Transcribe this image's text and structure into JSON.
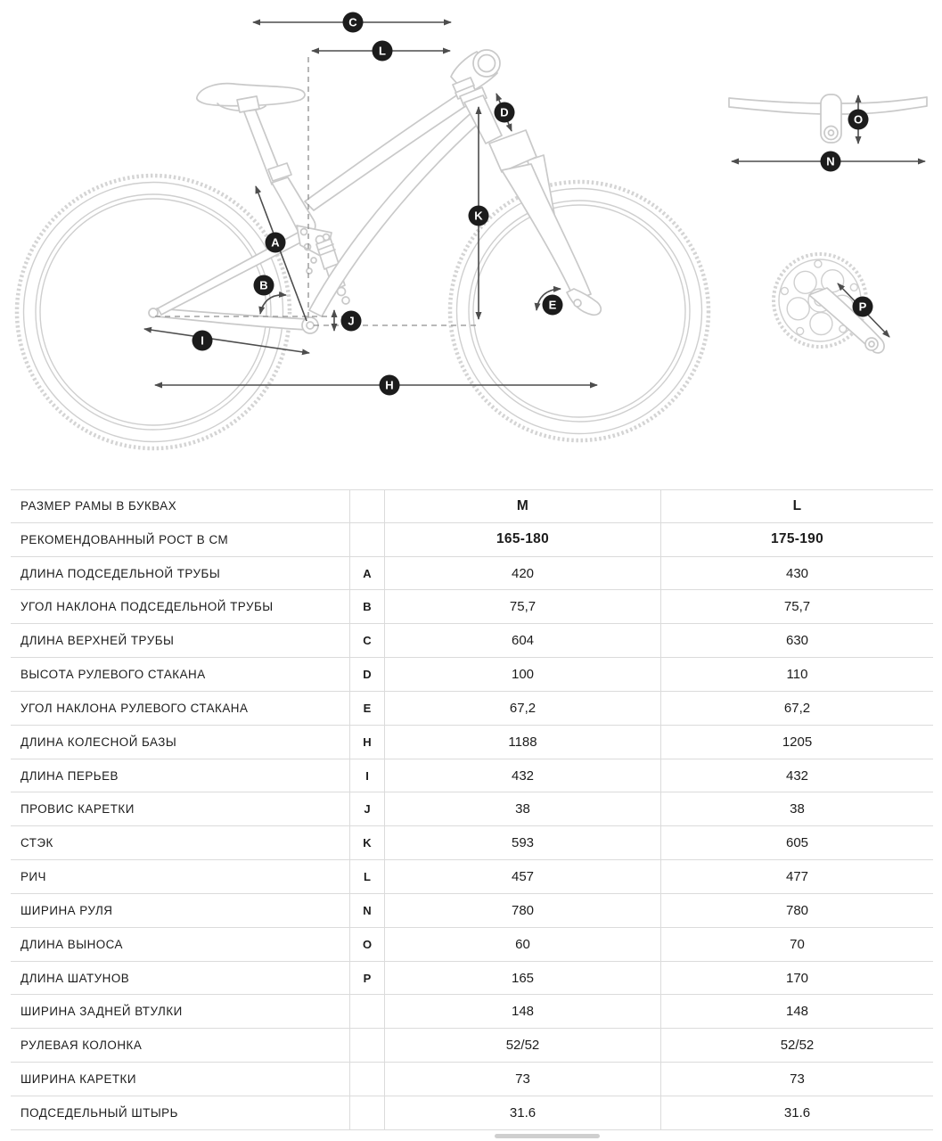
{
  "diagram": {
    "markers": [
      {
        "letter": "C"
      },
      {
        "letter": "L"
      },
      {
        "letter": "D"
      },
      {
        "letter": "K"
      },
      {
        "letter": "A"
      },
      {
        "letter": "B"
      },
      {
        "letter": "E"
      },
      {
        "letter": "J"
      },
      {
        "letter": "I"
      },
      {
        "letter": "H"
      },
      {
        "letter": "N"
      },
      {
        "letter": "O"
      },
      {
        "letter": "P"
      }
    ]
  },
  "table": {
    "rows": [
      {
        "label": "РАЗМЕР РАМЫ В БУКВАХ",
        "letter": "",
        "m": "M",
        "l": "L",
        "bold": true
      },
      {
        "label": "РЕКОМЕНДОВАННЫЙ РОСТ В СМ",
        "letter": "",
        "m": "165-180",
        "l": "175-190",
        "bold": true
      },
      {
        "label": "ДЛИНА ПОДСЕДЕЛЬНОЙ ТРУБЫ",
        "letter": "A",
        "m": "420",
        "l": "430",
        "bold": false
      },
      {
        "label": "УГОЛ НАКЛОНА ПОДСЕДЕЛЬНОЙ ТРУБЫ",
        "letter": "B",
        "m": "75,7",
        "l": "75,7",
        "bold": false
      },
      {
        "label": "ДЛИНА ВЕРХНЕЙ ТРУБЫ",
        "letter": "C",
        "m": "604",
        "l": "630",
        "bold": false
      },
      {
        "label": "ВЫСОТА РУЛЕВОГО СТАКАНА",
        "letter": "D",
        "m": "100",
        "l": "110",
        "bold": false
      },
      {
        "label": "УГОЛ НАКЛОНА РУЛЕВОГО СТАКАНА",
        "letter": "E",
        "m": "67,2",
        "l": "67,2",
        "bold": false
      },
      {
        "label": "ДЛИНА КОЛЕСНОЙ БАЗЫ",
        "letter": "H",
        "m": "1188",
        "l": "1205",
        "bold": false
      },
      {
        "label": "ДЛИНА ПЕРЬЕВ",
        "letter": "I",
        "m": "432",
        "l": "432",
        "bold": false
      },
      {
        "label": "ПРОВИС КАРЕТКИ",
        "letter": "J",
        "m": "38",
        "l": "38",
        "bold": false
      },
      {
        "label": "СТЭК",
        "letter": "K",
        "m": "593",
        "l": "605",
        "bold": false
      },
      {
        "label": "РИЧ",
        "letter": "L",
        "m": "457",
        "l": "477",
        "bold": false
      },
      {
        "label": "ШИРИНА РУЛЯ",
        "letter": "N",
        "m": "780",
        "l": "780",
        "bold": false
      },
      {
        "label": "ДЛИНА ВЫНОСА",
        "letter": "O",
        "m": "60",
        "l": "70",
        "bold": false
      },
      {
        "label": "ДЛИНА ШАТУНОВ",
        "letter": "P",
        "m": "165",
        "l": "170",
        "bold": false
      },
      {
        "label": "ШИРИНА ЗАДНЕЙ ВТУЛКИ",
        "letter": "",
        "m": "148",
        "l": "148",
        "bold": false
      },
      {
        "label": "РУЛЕВАЯ КОЛОНКА",
        "letter": "",
        "m": "52/52",
        "l": "52/52",
        "bold": false
      },
      {
        "label": "ШИРИНА КАРЕТКИ",
        "letter": "",
        "m": "73",
        "l": "73",
        "bold": false
      },
      {
        "label": "ПОДСЕДЕЛЬНЫЙ ШТЫРЬ",
        "letter": "",
        "m": "31.6",
        "l": "31.6",
        "bold": false
      }
    ]
  },
  "colors": {
    "line_art": "#c9c9c9",
    "dimension_lines": "#4d4d4d",
    "marker_background": "#1c1c1c",
    "marker_text": "#ffffff",
    "table_border": "#dbdbdb",
    "text": "#1c1c1c"
  }
}
